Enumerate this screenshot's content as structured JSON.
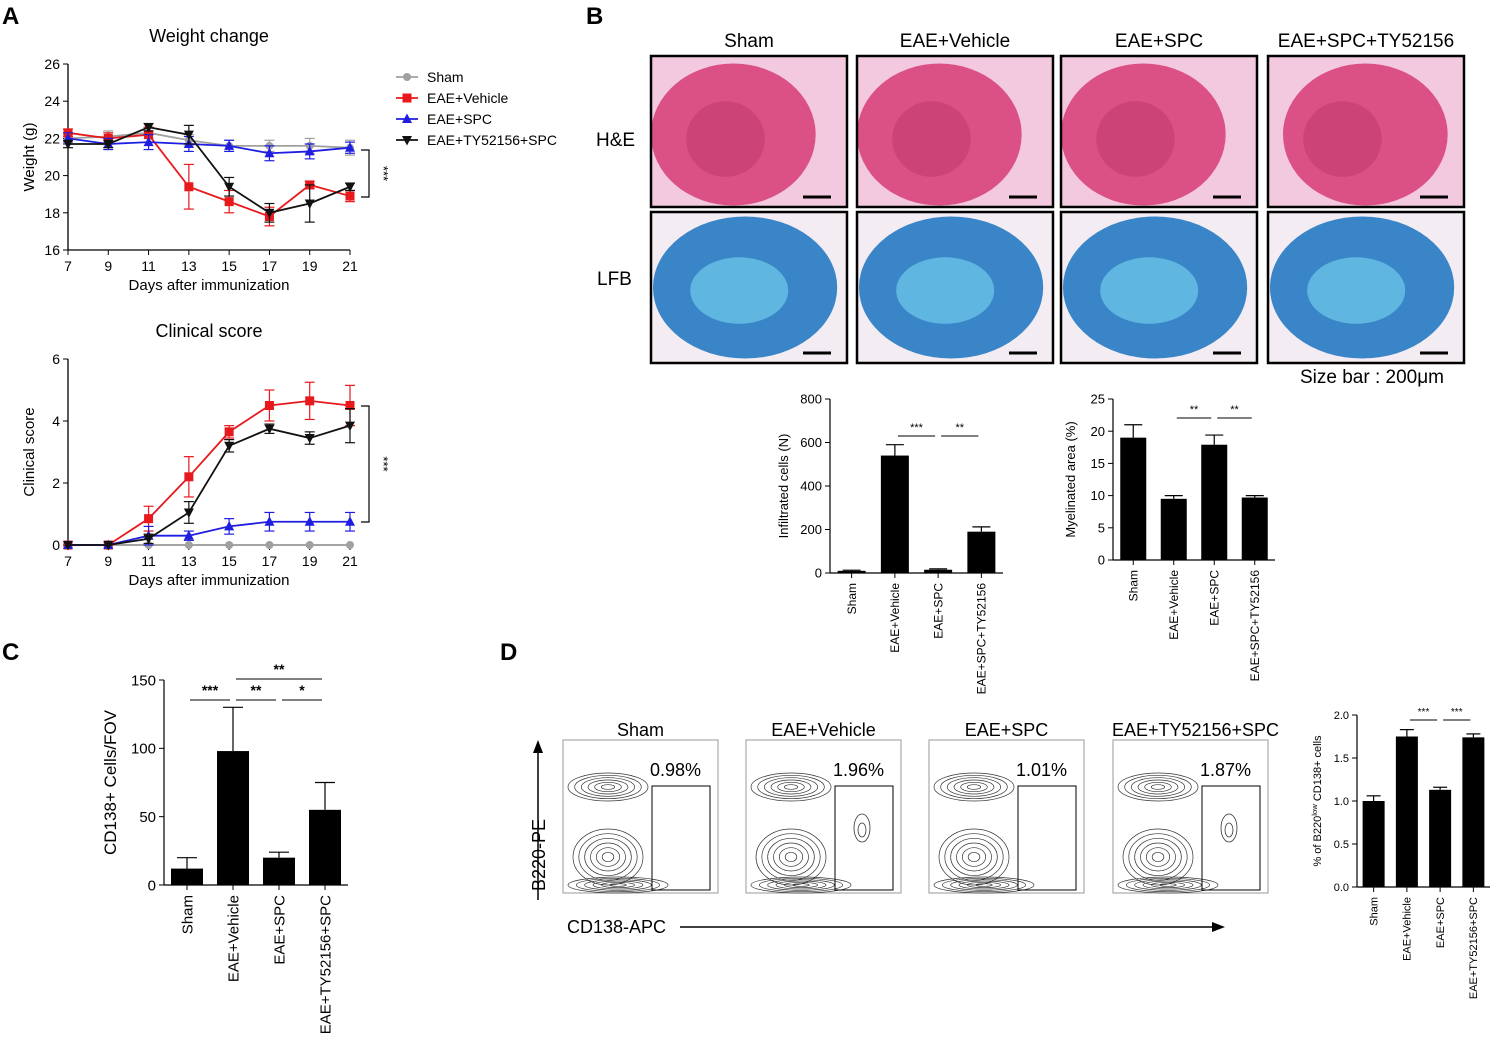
{
  "panels": {
    "A": "A",
    "B": "B",
    "C": "C",
    "D": "D"
  },
  "colors": {
    "sham": "#a0a0a0",
    "vehicle": "#e8191c",
    "spc": "#1f1ee0",
    "ty": "#111111",
    "he_bg": "#f2c9de",
    "he_tissue": "#d9457d",
    "lfb_bg": "#f4ecf3",
    "lfb_tissue": "#2f7fc4",
    "lfb_light": "#6cc7ea"
  },
  "chart_data": [
    {
      "id": "weight",
      "type": "line",
      "title": "Weight change",
      "xlabel": "Days after immunization",
      "ylabel": "Weight (g)",
      "xlim": [
        7,
        21
      ],
      "ylim": [
        16,
        26
      ],
      "xticks": [
        7,
        9,
        11,
        13,
        15,
        17,
        19,
        21
      ],
      "yticks": [
        16,
        18,
        20,
        22,
        24,
        26
      ],
      "x": [
        7,
        9,
        11,
        13,
        15,
        17,
        19,
        21
      ],
      "legend": [
        "Sham",
        "EAE+Vehicle",
        "EAE+SPC",
        "EAE+TY52156+SPC"
      ],
      "series": [
        {
          "name": "Sham",
          "color_key": "sham",
          "marker": "circle",
          "values": [
            22.0,
            22.1,
            22.3,
            21.9,
            21.6,
            21.6,
            21.6,
            21.5
          ],
          "err": [
            0.2,
            0.3,
            0.3,
            0.3,
            0.3,
            0.3,
            0.4,
            0.4
          ]
        },
        {
          "name": "EAE+Vehicle",
          "color_key": "vehicle",
          "marker": "square",
          "values": [
            22.3,
            22.0,
            22.2,
            19.4,
            18.6,
            17.8,
            19.5,
            18.9
          ],
          "err": [
            0.2,
            0.3,
            0.4,
            1.2,
            0.6,
            0.5,
            0.2,
            0.3
          ]
        },
        {
          "name": "EAE+SPC",
          "color_key": "spc",
          "marker": "triangle-up",
          "values": [
            22.0,
            21.7,
            21.8,
            21.7,
            21.6,
            21.2,
            21.3,
            21.5
          ],
          "err": [
            0.3,
            0.3,
            0.4,
            0.4,
            0.3,
            0.4,
            0.4,
            0.3
          ]
        },
        {
          "name": "EAE+TY52156+SPC",
          "color_key": "ty",
          "marker": "triangle-down",
          "values": [
            21.7,
            21.7,
            22.6,
            22.2,
            19.4,
            18.0,
            18.5,
            19.4
          ],
          "err": [
            0.2,
            0.2,
            0.2,
            0.5,
            0.5,
            0.5,
            1.0,
            0.2
          ]
        }
      ],
      "annotations": [
        "***"
      ]
    },
    {
      "id": "clinical",
      "type": "line",
      "title": "Clinical score",
      "xlabel": "Days after immunization",
      "ylabel": "Clinical score",
      "xlim": [
        7,
        21
      ],
      "ylim": [
        0,
        6
      ],
      "xticks": [
        7,
        9,
        11,
        13,
        15,
        17,
        19,
        21
      ],
      "yticks": [
        0,
        2,
        4,
        6
      ],
      "x": [
        7,
        9,
        11,
        13,
        15,
        17,
        19,
        21
      ],
      "series": [
        {
          "name": "Sham",
          "color_key": "sham",
          "marker": "circle",
          "values": [
            0,
            0,
            0,
            0,
            0,
            0,
            0,
            0
          ],
          "err": [
            0,
            0,
            0,
            0,
            0,
            0,
            0,
            0
          ]
        },
        {
          "name": "EAE+Vehicle",
          "color_key": "vehicle",
          "marker": "square",
          "values": [
            0,
            0,
            0.85,
            2.2,
            3.65,
            4.5,
            4.65,
            4.5
          ],
          "err": [
            0,
            0,
            0.4,
            0.65,
            0.2,
            0.5,
            0.6,
            0.65
          ]
        },
        {
          "name": "EAE+SPC",
          "color_key": "spc",
          "marker": "triangle-up",
          "values": [
            0,
            0,
            0.3,
            0.3,
            0.6,
            0.75,
            0.75,
            0.75
          ],
          "err": [
            0,
            0,
            0.3,
            0.15,
            0.25,
            0.3,
            0.3,
            0.3
          ]
        },
        {
          "name": "EAE+TY52156+SPC",
          "color_key": "ty",
          "marker": "triangle-down",
          "values": [
            0,
            0,
            0.2,
            1.05,
            3.2,
            3.75,
            3.45,
            3.85
          ],
          "err": [
            0,
            0,
            0.15,
            0.35,
            0.2,
            0.15,
            0.2,
            0.55
          ]
        }
      ],
      "annotations": [
        "***"
      ]
    },
    {
      "id": "infiltrated",
      "type": "bar",
      "ylabel": "Infiltrated cells (N)",
      "ylim": [
        0,
        800
      ],
      "yticks": [
        0,
        200,
        400,
        600,
        800
      ],
      "categories": [
        "Sham",
        "EAE+Vehicle",
        "EAE+SPC",
        "EAE+SPC+TY52156"
      ],
      "values": [
        10,
        540,
        15,
        190
      ],
      "err": [
        3,
        50,
        4,
        22
      ],
      "sig": [
        {
          "from": 1,
          "to": 2,
          "label": "***"
        },
        {
          "from": 2,
          "to": 3,
          "label": "**"
        }
      ]
    },
    {
      "id": "myelinated",
      "type": "bar",
      "ylabel": "Myelinated area (%)",
      "ylim": [
        0,
        25
      ],
      "yticks": [
        0,
        5,
        10,
        15,
        20,
        25
      ],
      "categories": [
        "Sham",
        "EAE+Vehicle",
        "EAE+SPC",
        "EAE+SPC+TY52156"
      ],
      "values": [
        19.0,
        9.5,
        17.9,
        9.7
      ],
      "err": [
        2.0,
        0.5,
        1.5,
        0.3
      ],
      "sig": [
        {
          "from": 1,
          "to": 2,
          "label": "**"
        },
        {
          "from": 2,
          "to": 3,
          "label": "**"
        }
      ]
    },
    {
      "id": "cd138",
      "type": "bar",
      "ylabel": "CD138+ Cells/FOV",
      "ylim": [
        0,
        150
      ],
      "yticks": [
        0,
        50,
        100,
        150
      ],
      "categories": [
        "Sham",
        "EAE+Vehicle",
        "EAE+SPC",
        "EAE+TY52156+SPC"
      ],
      "values": [
        12,
        98,
        20,
        55
      ],
      "err": [
        8,
        32,
        4,
        20
      ],
      "sig": [
        {
          "from": 0,
          "to": 1,
          "label": "***",
          "level": 0
        },
        {
          "from": 1,
          "to": 2,
          "label": "**",
          "level": 0
        },
        {
          "from": 2,
          "to": 3,
          "label": "*",
          "level": 0
        },
        {
          "from": 1,
          "to": 3,
          "label": "**",
          "level": 1
        }
      ]
    },
    {
      "id": "b220",
      "type": "bar",
      "ylabel_prefix": "% of B220",
      "ylabel_sup": "low",
      "ylabel_suffix": " CD138+ cells",
      "ylim": [
        0,
        2.0
      ],
      "yticks": [
        0.0,
        0.5,
        1.0,
        1.5,
        2.0
      ],
      "ytick_labels": [
        "0.0",
        "0.5",
        "1.0",
        "1.5",
        "2.0"
      ],
      "categories": [
        "Sham",
        "EAE+Vehicle",
        "EAE+SPC",
        "EAE+TY52156+SPC"
      ],
      "values": [
        1.0,
        1.75,
        1.13,
        1.74
      ],
      "err": [
        0.06,
        0.08,
        0.03,
        0.04
      ],
      "sig": [
        {
          "from": 1,
          "to": 2,
          "label": "***"
        },
        {
          "from": 2,
          "to": 3,
          "label": "***"
        }
      ]
    }
  ],
  "histology": {
    "columns": [
      "Sham",
      "EAE+Vehicle",
      "EAE+SPC",
      "EAE+SPC+TY52156"
    ],
    "rows": [
      "H&E",
      "LFB"
    ],
    "size_bar": "Size bar : 200μm"
  },
  "flow": {
    "columns": [
      "Sham",
      "EAE+Vehicle",
      "EAE+SPC",
      "EAE+TY52156+SPC"
    ],
    "percents": [
      "0.98%",
      "1.96%",
      "1.01%",
      "1.87%"
    ],
    "ylabel": "B220-PE",
    "xlabel": "CD138-APC"
  }
}
